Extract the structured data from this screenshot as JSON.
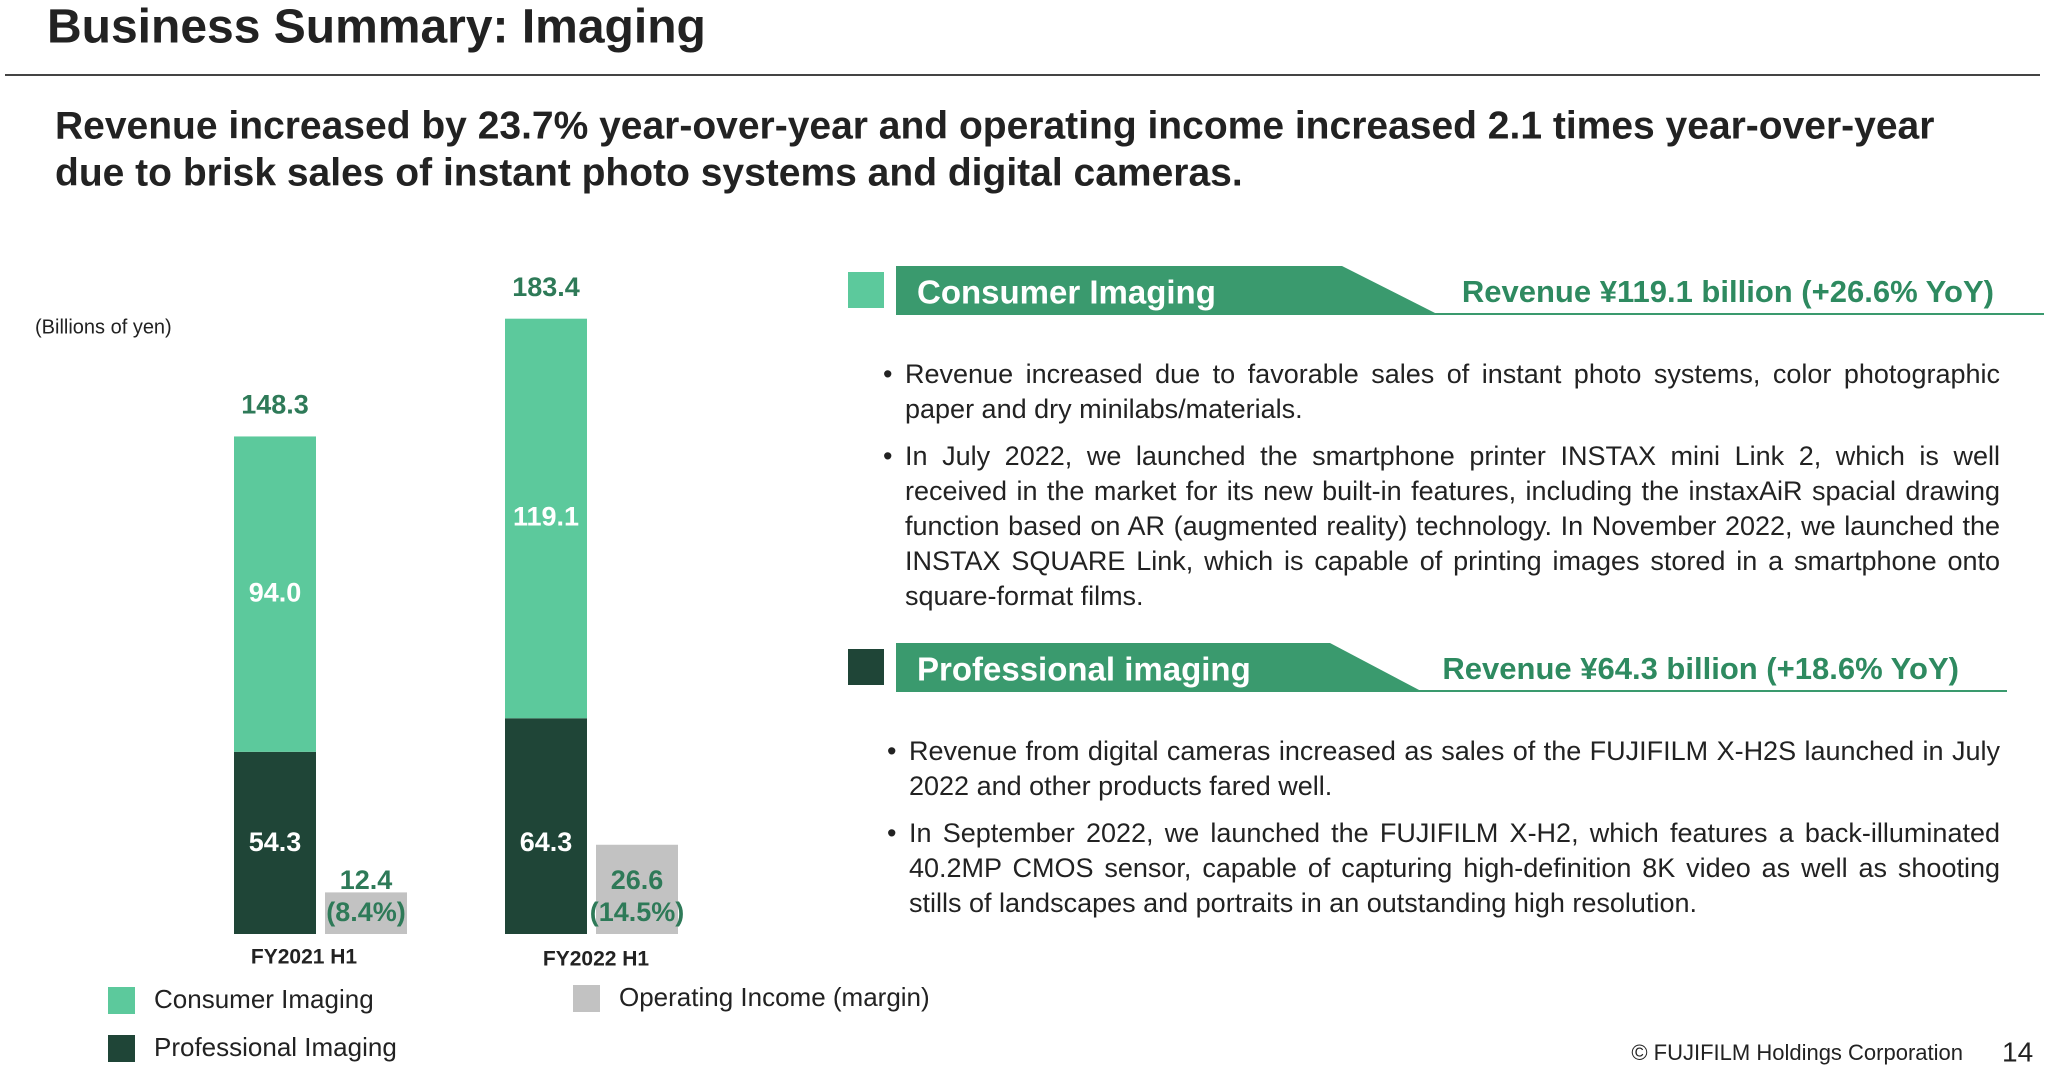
{
  "header": {
    "title": "Business Summary: Imaging"
  },
  "headline": [
    "Revenue increased by 23.7% year-over-year and operating income increased 2.1 times year-over-year",
    "due to brisk sales of instant photo systems and digital cameras."
  ],
  "chart_data": {
    "type": "stacked_bar",
    "ylabel": "(Billions of yen)",
    "categories": [
      "FY2021 H1",
      "FY2022 H1"
    ],
    "ylim": [
      0,
      200
    ],
    "series": [
      {
        "name": "Consumer Imaging",
        "color": "#5cc99c",
        "values": [
          94.0,
          119.1
        ],
        "value_labels": [
          "94.0",
          "119.1"
        ]
      },
      {
        "name": "Professional Imaging",
        "color": "#1f4537",
        "values": [
          54.3,
          64.3
        ]
      }
    ],
    "totals": [
      148.3,
      183.4
    ],
    "side_series": {
      "name": "Operating Income (margin)",
      "color": "#c2c2c2",
      "values": [
        12.4,
        26.6
      ],
      "margin_labels": [
        "(8.4%)",
        "(14.5%)"
      ]
    }
  },
  "sections": [
    {
      "title": "Consumer Imaging",
      "revenue": "Revenue ¥119.1 billion (+26.6% YoY)",
      "color": "#5cc99c",
      "bullets": [
        "Revenue increased due to favorable sales of instant photo systems, color photographic paper and dry minilabs/materials.",
        "In July 2022, we launched the smartphone printer INSTAX mini Link 2, which is well received in the market for its new built-in features, including the instaxAiR spacial drawing function based on AR (augmented reality) technology. In November 2022, we launched the INSTAX SQUARE Link, which is capable of printing images stored in a smartphone onto square-format films."
      ]
    },
    {
      "title": "Professional imaging",
      "revenue": "Revenue ¥64.3 billion (+18.6% YoY)",
      "color": "#1f4537",
      "bullets": [
        "Revenue from digital cameras increased as sales of the FUJIFILM X-H2S launched in July 2022 and other products fared well.",
        "In September 2022, we launched the FUJIFILM X-H2, which features a back-illuminated 40.2MP CMOS sensor, capable of capturing high-definition 8K video as well as shooting stills of landscapes and portraits in an outstanding high resolution."
      ]
    }
  ],
  "footer": {
    "copyright": "© FUJIFILM Holdings Corporation",
    "page": "14"
  }
}
